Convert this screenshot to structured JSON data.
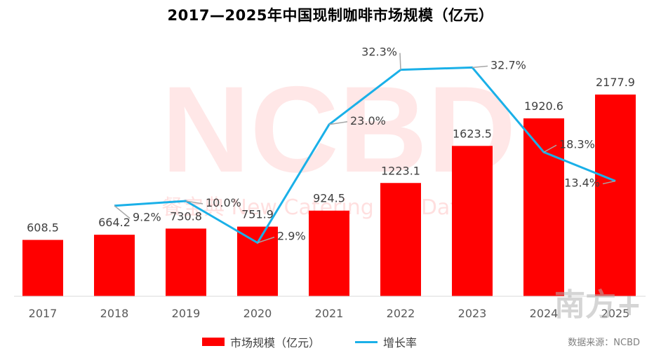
{
  "title": "2017—2025年中国现制咖啡市场规模（亿元）",
  "watermark": {
    "logo": "NCBD",
    "subtitle": "餐宝典  New Catering Big Data",
    "corner_mark": "南方+"
  },
  "source": "数据来源：NCBD",
  "colors": {
    "bar": "#ff0000",
    "line": "#1ab0e8"
  },
  "chart_data": {
    "type": "bar+line",
    "title": "2017—2025年中国现制咖啡市场规模（亿元）",
    "categories": [
      "2017",
      "2018",
      "2019",
      "2020",
      "2021",
      "2022",
      "2023",
      "2024",
      "2025"
    ],
    "series": [
      {
        "name": "市场规模（亿元）",
        "type": "bar",
        "values": [
          608.5,
          664.2,
          730.8,
          751.9,
          924.5,
          1223.1,
          1623.5,
          1920.6,
          2177.9
        ],
        "labels": [
          "608.5",
          "664.2",
          "730.8",
          "751.9",
          "924.5",
          "1223.1",
          "1623.5",
          "1920.6",
          "2177.9"
        ]
      },
      {
        "name": "增长率",
        "type": "line",
        "values": [
          null,
          9.2,
          10.0,
          2.9,
          23.0,
          32.3,
          32.7,
          18.3,
          13.4
        ],
        "labels": [
          "",
          "9.2%",
          "10.0%",
          "2.9%",
          "23.0%",
          "32.3%",
          "32.7%",
          "18.3%",
          "13.4%"
        ]
      }
    ],
    "bar_ylim": [
      0,
      2500
    ],
    "line_ylim": [
      -10,
      40
    ],
    "legend": [
      "市场规模（亿元）",
      "增长率"
    ],
    "legend_position": "bottom"
  }
}
